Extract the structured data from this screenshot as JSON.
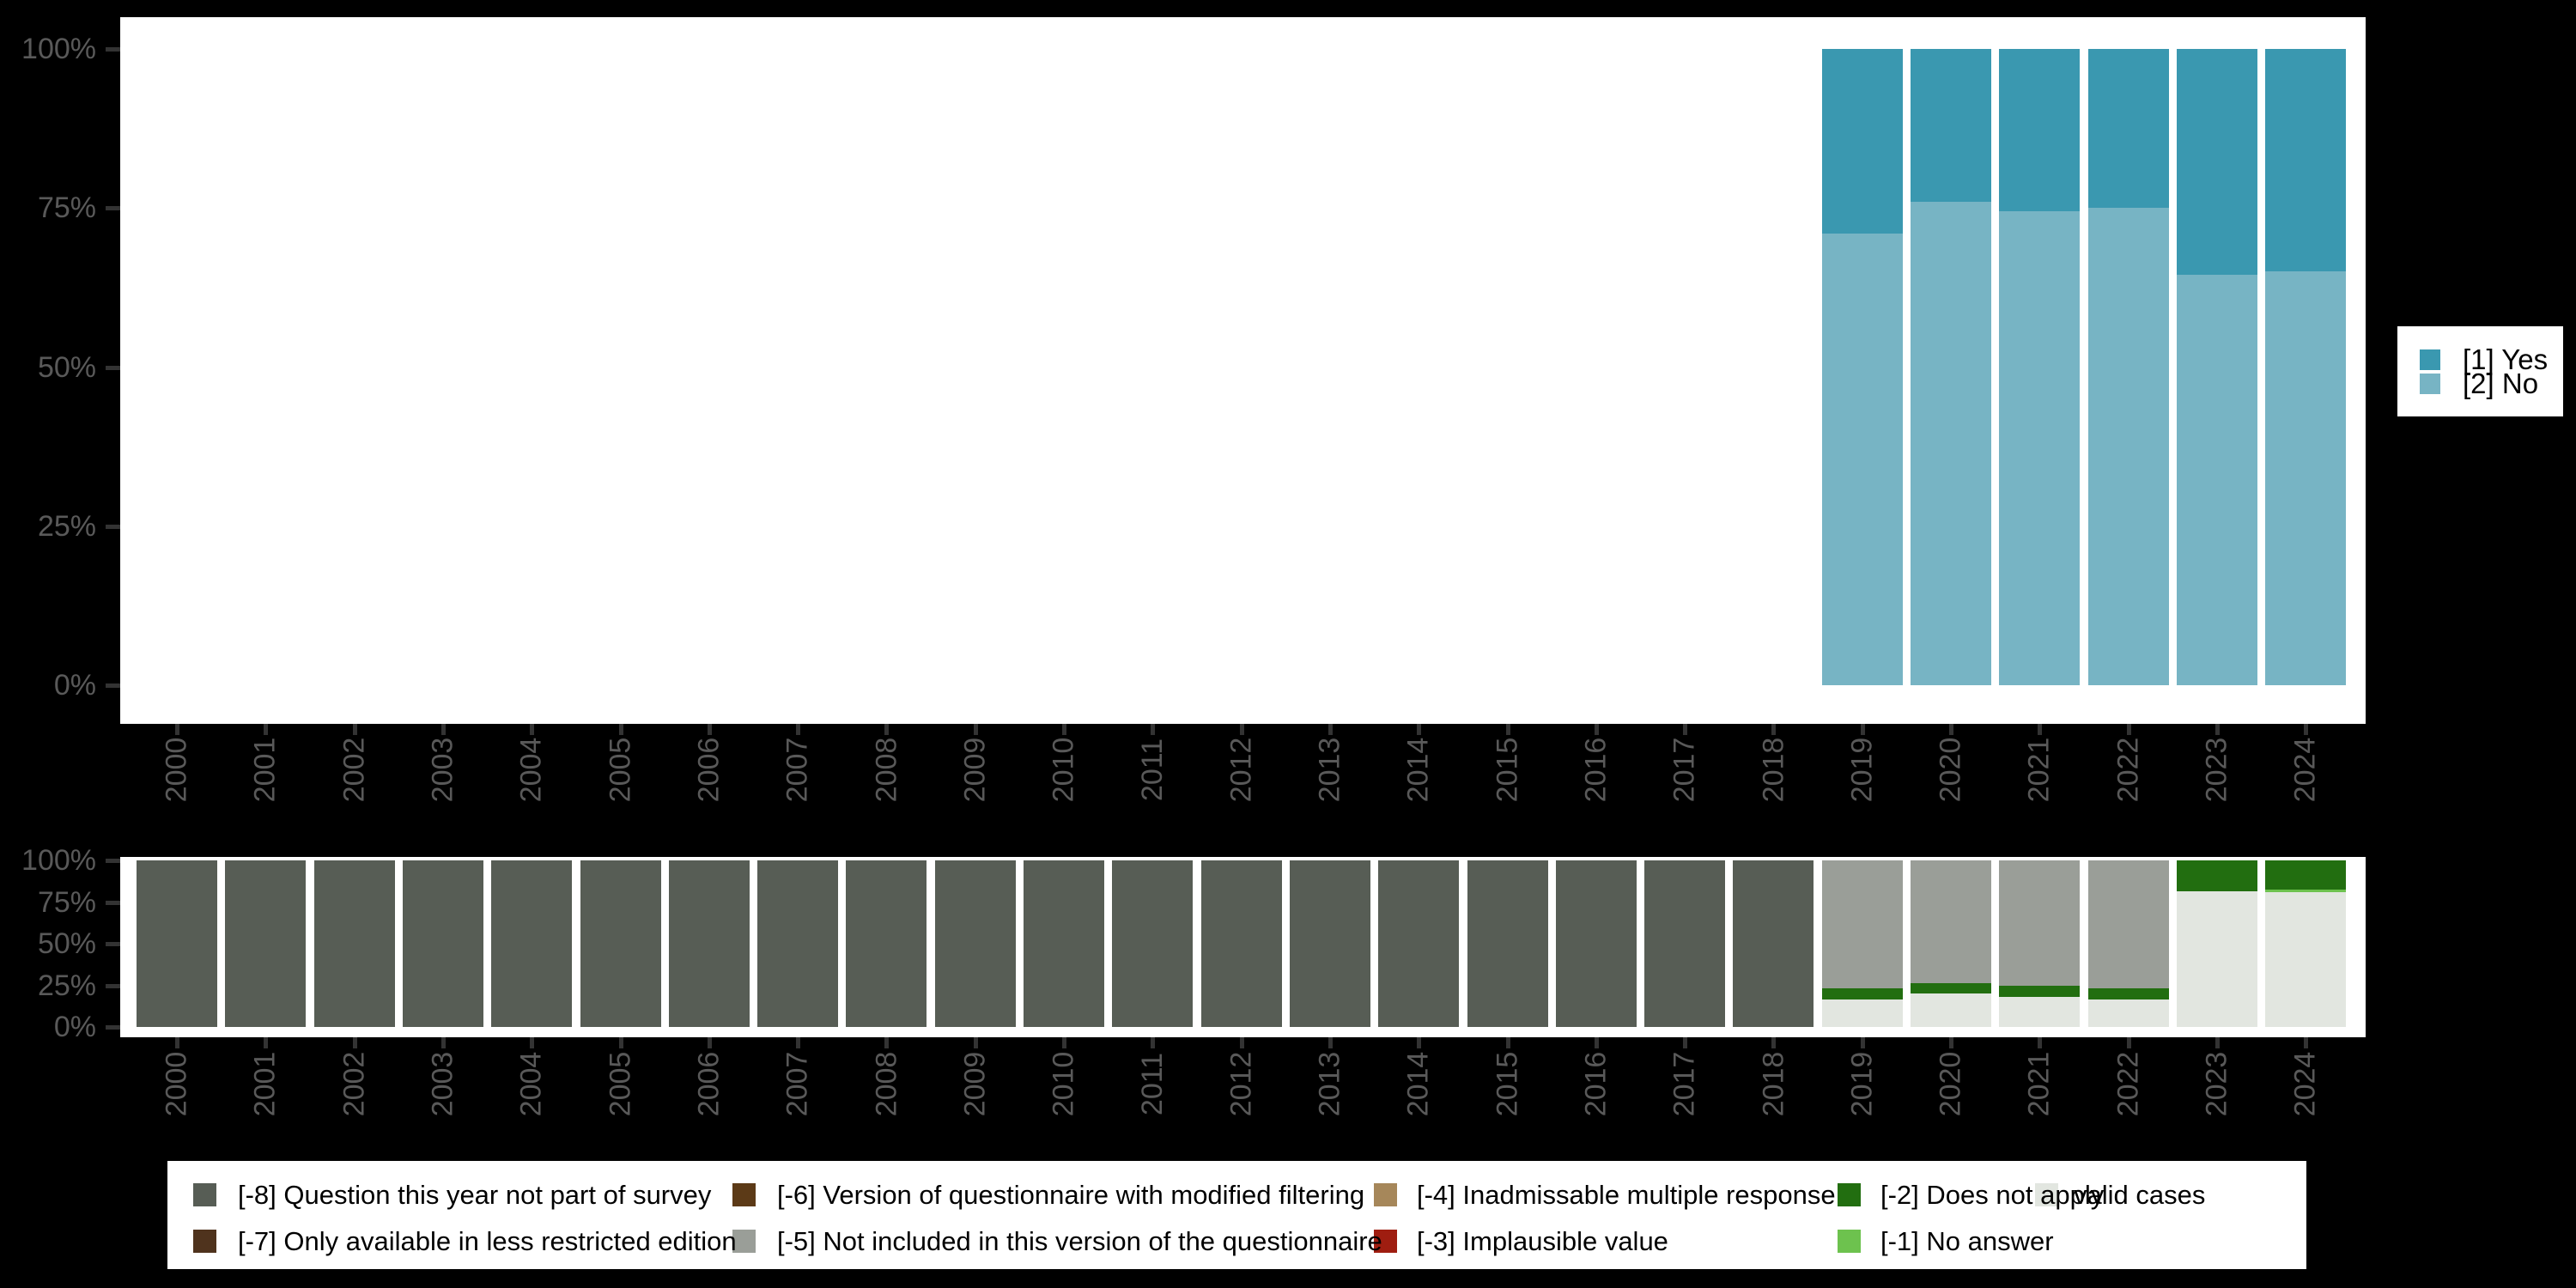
{
  "app": {
    "description": "Survey variable by year: stacked percentage bars (top) and missing-values breakdown (bottom)"
  },
  "colors": {
    "background": "#000000",
    "plot_bg": "#ffffff",
    "axis_text": "#595959",
    "tick": "#333333",
    "yes": "#3A98B0",
    "no": "#77B4C4",
    "m8": "#575D55",
    "m7": "#4F331D",
    "m6": "#5C3A17",
    "m5": "#9A9E98",
    "m4": "#A6875A",
    "m3": "#9F1D10",
    "m2": "#226E10",
    "m1": "#6DC24E",
    "valid": "#E2E6E0"
  },
  "axes": {
    "y_tick_labels": [
      "100%",
      "75%",
      "50%",
      "25%",
      "0%"
    ],
    "x_tick_labels": [
      "2000",
      "2001",
      "2002",
      "2003",
      "2004",
      "2005",
      "2006",
      "2007",
      "2008",
      "2009",
      "2010",
      "2011",
      "2012",
      "2013",
      "2014",
      "2015",
      "2016",
      "2017",
      "2018",
      "2019",
      "2020",
      "2021",
      "2022",
      "2023",
      "2024"
    ]
  },
  "top_legend": {
    "items": [
      {
        "key": "yes",
        "label": "[1] Yes",
        "color_key": "yes"
      },
      {
        "key": "no",
        "label": "[2] No",
        "color_key": "no"
      }
    ]
  },
  "bottom_legend": {
    "items": [
      {
        "key": "m8",
        "label": "[-8] Question this year not part of survey",
        "color_key": "m8"
      },
      {
        "key": "m7",
        "label": "[-7] Only available in less restricted edition",
        "color_key": "m7"
      },
      {
        "key": "m6",
        "label": "[-6] Version of questionnaire with modified filtering",
        "color_key": "m6"
      },
      {
        "key": "m5",
        "label": "[-5] Not included in this version of the questionnaire",
        "color_key": "m5"
      },
      {
        "key": "m4",
        "label": "[-4] Inadmissable multiple response",
        "color_key": "m4"
      },
      {
        "key": "m3",
        "label": "[-3] Implausible value",
        "color_key": "m3"
      },
      {
        "key": "m2",
        "label": "[-2] Does not apply",
        "color_key": "m2"
      },
      {
        "key": "m1",
        "label": "[-1] No answer",
        "color_key": "m1"
      },
      {
        "key": "valid",
        "label": "valid cases",
        "color_key": "valid"
      }
    ]
  },
  "chart_data": [
    {
      "type": "bar",
      "stacked": true,
      "title": "",
      "xlabel": "",
      "ylabel": "",
      "ylim": [
        0,
        100
      ],
      "y_ticks": [
        "0%",
        "25%",
        "50%",
        "75%",
        "100%"
      ],
      "legend_position": "right",
      "grid": false,
      "note": "No bars for 2000-2018 (question not asked those years)",
      "categories": [
        "2000",
        "2001",
        "2002",
        "2003",
        "2004",
        "2005",
        "2006",
        "2007",
        "2008",
        "2009",
        "2010",
        "2011",
        "2012",
        "2013",
        "2014",
        "2015",
        "2016",
        "2017",
        "2018",
        "2019",
        "2020",
        "2021",
        "2022",
        "2023",
        "2024"
      ],
      "series": [
        {
          "name": "[1] Yes",
          "key": "yes",
          "color_key": "yes",
          "values": [
            null,
            null,
            null,
            null,
            null,
            null,
            null,
            null,
            null,
            null,
            null,
            null,
            null,
            null,
            null,
            null,
            null,
            null,
            null,
            29,
            24,
            25.5,
            25,
            35.5,
            35
          ]
        },
        {
          "name": "[2] No",
          "key": "no",
          "color_key": "no",
          "values": [
            null,
            null,
            null,
            null,
            null,
            null,
            null,
            null,
            null,
            null,
            null,
            null,
            null,
            null,
            null,
            null,
            null,
            null,
            null,
            71,
            76,
            74.5,
            75,
            64.5,
            65
          ]
        }
      ]
    },
    {
      "type": "bar",
      "stacked": true,
      "title": "",
      "xlabel": "",
      "ylabel": "",
      "ylim": [
        0,
        100
      ],
      "y_ticks": [
        "0%",
        "25%",
        "50%",
        "75%",
        "100%"
      ],
      "legend_position": "bottom",
      "grid": false,
      "note": "Missing-value composition per year; series listed top-to-bottom of stack",
      "categories": [
        "2000",
        "2001",
        "2002",
        "2003",
        "2004",
        "2005",
        "2006",
        "2007",
        "2008",
        "2009",
        "2010",
        "2011",
        "2012",
        "2013",
        "2014",
        "2015",
        "2016",
        "2017",
        "2018",
        "2019",
        "2020",
        "2021",
        "2022",
        "2023",
        "2024"
      ],
      "series": [
        {
          "name": "[-8] Question this year not part of survey",
          "key": "m8",
          "color_key": "m8",
          "values": [
            100,
            100,
            100,
            100,
            100,
            100,
            100,
            100,
            100,
            100,
            100,
            100,
            100,
            100,
            100,
            100,
            100,
            100,
            100,
            0,
            0,
            0,
            0,
            0,
            0
          ]
        },
        {
          "name": "[-5] Not included in this version of the questionnaire",
          "key": "m5",
          "color_key": "m5",
          "values": [
            0,
            0,
            0,
            0,
            0,
            0,
            0,
            0,
            0,
            0,
            0,
            0,
            0,
            0,
            0,
            0,
            0,
            0,
            0,
            77,
            73.5,
            75.5,
            77,
            0,
            0
          ]
        },
        {
          "name": "[-2] Does not apply",
          "key": "m2",
          "color_key": "m2",
          "values": [
            0,
            0,
            0,
            0,
            0,
            0,
            0,
            0,
            0,
            0,
            0,
            0,
            0,
            0,
            0,
            0,
            0,
            0,
            0,
            6.5,
            6.5,
            6.5,
            6.5,
            18.5,
            17.5
          ]
        },
        {
          "name": "[-1] No answer",
          "key": "m1",
          "color_key": "m1",
          "values": [
            0,
            0,
            0,
            0,
            0,
            0,
            0,
            0,
            0,
            0,
            0,
            0,
            0,
            0,
            0,
            0,
            0,
            0,
            0,
            0,
            0,
            0,
            0,
            0,
            1.5
          ]
        },
        {
          "name": "valid cases",
          "key": "valid",
          "color_key": "valid",
          "values": [
            0,
            0,
            0,
            0,
            0,
            0,
            0,
            0,
            0,
            0,
            0,
            0,
            0,
            0,
            0,
            0,
            0,
            0,
            0,
            16.5,
            20,
            18,
            16.5,
            81.5,
            81
          ]
        }
      ]
    }
  ]
}
